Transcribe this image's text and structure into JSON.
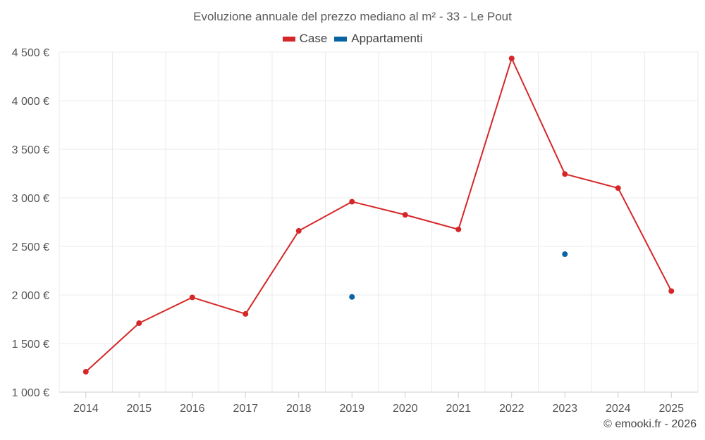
{
  "chart_data": {
    "type": "line",
    "title": "Evoluzione annuale del prezzo mediano al m² - 33 - Le Pout",
    "categories": [
      "2014",
      "2015",
      "2016",
      "2017",
      "2018",
      "2019",
      "2020",
      "2021",
      "2022",
      "2023",
      "2024",
      "2025"
    ],
    "series": [
      {
        "name": "Case",
        "color": "#d62728",
        "line": true,
        "values": [
          1210,
          1710,
          1975,
          1805,
          2660,
          2960,
          2825,
          2675,
          4435,
          3245,
          3100,
          2040
        ]
      },
      {
        "name": "Appartamenti",
        "color": "#0a64a4",
        "line": false,
        "values": [
          null,
          null,
          null,
          null,
          null,
          1980,
          null,
          null,
          null,
          2420,
          null,
          null
        ]
      }
    ],
    "y_ticks": [
      1000,
      1500,
      2000,
      2500,
      3000,
      3500,
      4000,
      4500
    ],
    "y_tick_labels": [
      "1 000 €",
      "1 500 €",
      "2 000 €",
      "2 500 €",
      "3 000 €",
      "3 500 €",
      "4 000 €",
      "4 500 €"
    ],
    "ylim": [
      1000,
      4500
    ],
    "xlabel": "",
    "ylabel": "",
    "grid": true,
    "legend": "top-center"
  },
  "credit": "© emooki.fr - 2026"
}
